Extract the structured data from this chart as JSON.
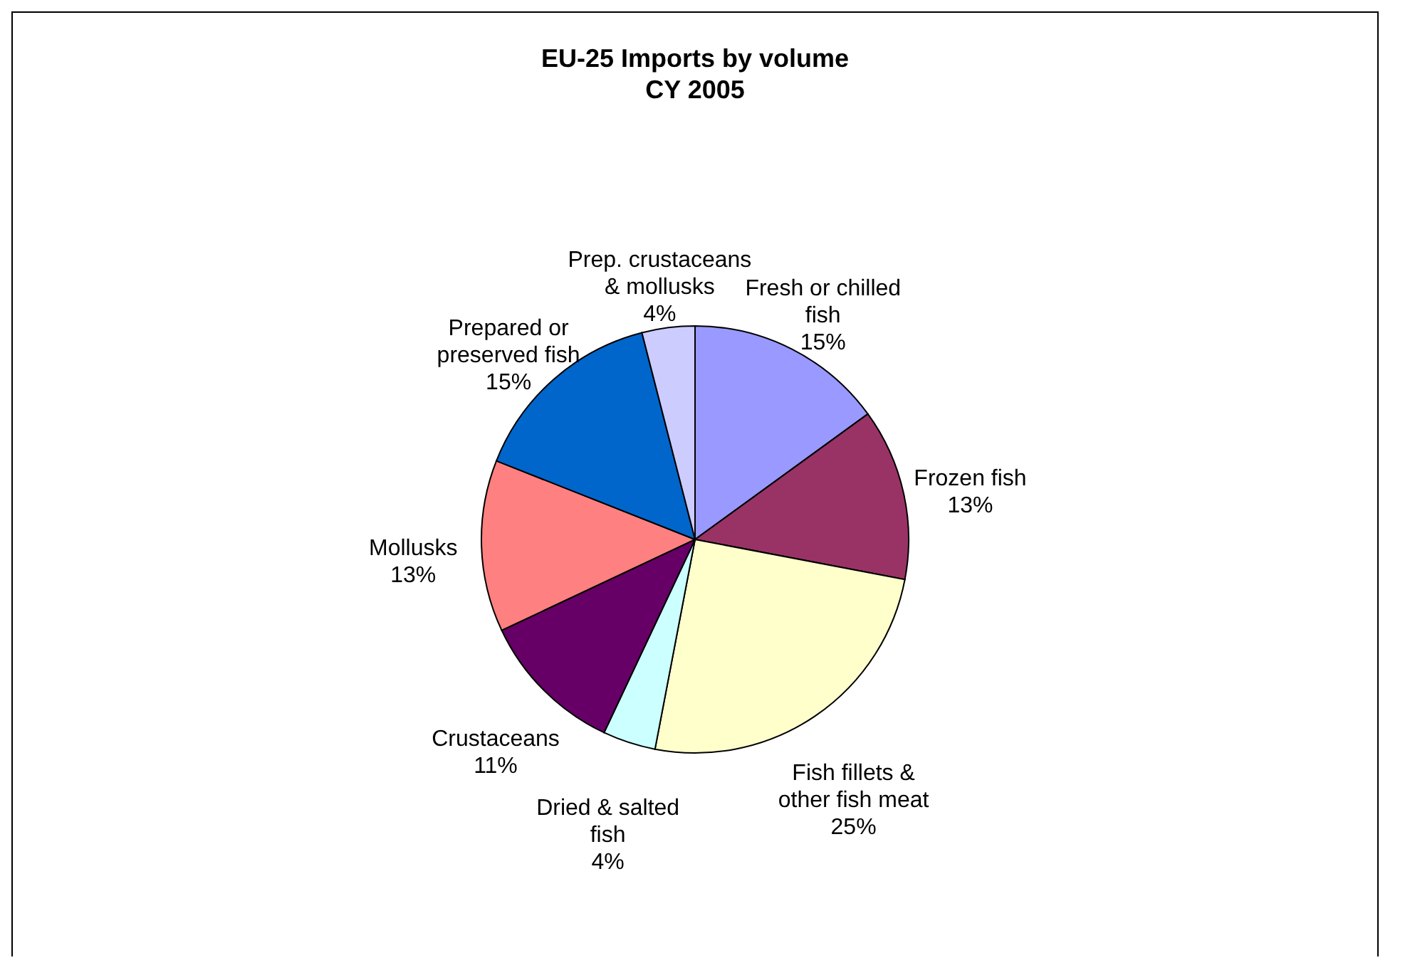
{
  "chart_data": {
    "type": "pie",
    "title": "EU-25 Imports by volume",
    "subtitle": "CY 2005",
    "categories": [
      "Fresh or chilled fish",
      "Frozen fish",
      "Fish fillets & other fish meat",
      "Dried & salted fish",
      "Crustaceans",
      "Mollusks",
      "Prepared or preserved fish",
      "Prep. crustaceans & mollusks"
    ],
    "values": [
      15,
      13,
      25,
      4,
      11,
      13,
      15,
      4
    ],
    "colors": [
      "#9999ff",
      "#993366",
      "#ffffcc",
      "#ccffff",
      "#660066",
      "#ff8080",
      "#0066cc",
      "#ccccff"
    ],
    "value_labels": [
      "15%",
      "13%",
      "25%",
      "4%",
      "11%",
      "13%",
      "15%",
      "4%"
    ],
    "legend": false
  }
}
